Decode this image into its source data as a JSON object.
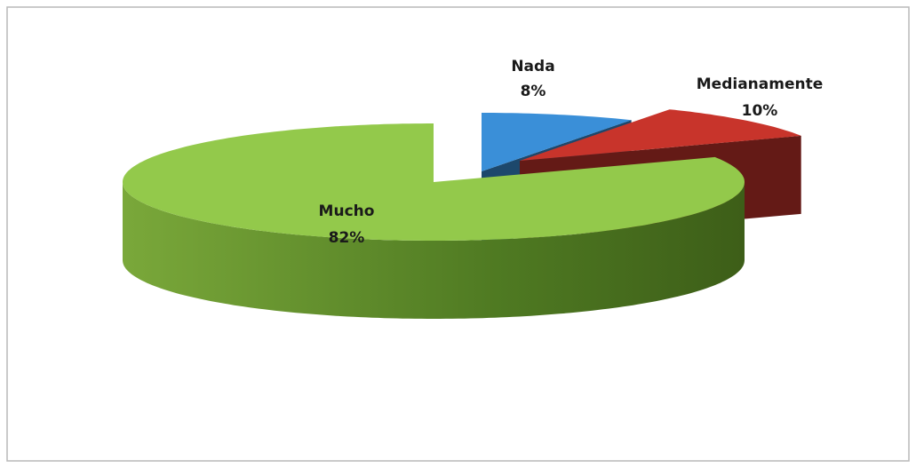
{
  "chart_data": {
    "type": "pie",
    "categories": [
      "Nada",
      "Medianamente",
      "Mucho"
    ],
    "values": [
      8,
      10,
      82
    ],
    "value_labels": [
      "8%",
      "10%",
      "82%"
    ],
    "colors": [
      "#3a8fd8",
      "#c8342b",
      "#93c94b"
    ]
  }
}
